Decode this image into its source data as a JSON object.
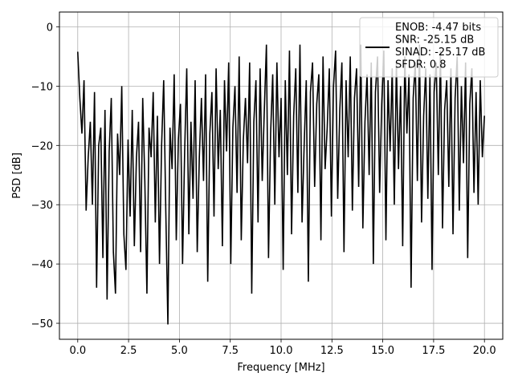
{
  "chart_data": {
    "type": "line",
    "title": "",
    "xlabel": "Frequency [MHz]",
    "ylabel": "PSD [dB]",
    "xlim": [
      -0.9,
      20.9
    ],
    "ylim": [
      -52.7,
      2.5
    ],
    "xticks": [
      0.0,
      2.5,
      5.0,
      7.5,
      10.0,
      12.5,
      15.0,
      17.5,
      20.0
    ],
    "xtick_labels": [
      "0.0",
      "2.5",
      "5.0",
      "7.5",
      "10.0",
      "12.5",
      "15.0",
      "17.5",
      "20.0"
    ],
    "yticks": [
      0,
      -10,
      -20,
      -30,
      -40,
      -50
    ],
    "ytick_labels": [
      "0",
      "−10",
      "−20",
      "−30",
      "−40",
      "−50"
    ],
    "grid": true,
    "legend_position": "top-right",
    "series": [
      {
        "name": "ENOB: -4.47 bits\nSNR: -25.15 dB\nSINAD: -25.17 dB\nSFDR: 0.8",
        "color": "#000000",
        "x_start": 0.0,
        "x_end": 20.0,
        "values": [
          -4.2,
          -12,
          -18,
          -9,
          -31,
          -22,
          -16,
          -30,
          -11,
          -44,
          -20,
          -17,
          -39,
          -14,
          -46,
          -21,
          -12,
          -38,
          -45,
          -18,
          -25,
          -10,
          -35,
          -41,
          -19,
          -32,
          -14,
          -37,
          -22,
          -16,
          -38,
          -12,
          -26,
          -45,
          -17,
          -22,
          -11,
          -33,
          -15,
          -40,
          -20,
          -9,
          -31,
          -50.2,
          -17,
          -24,
          -8,
          -36,
          -19,
          -13,
          -40,
          -21,
          -7,
          -35,
          -16,
          -29,
          -9,
          -38,
          -22,
          -12,
          -26,
          -8,
          -43,
          -18,
          -11,
          -32,
          -7,
          -24,
          -14,
          -37,
          -9,
          -21,
          -6,
          -40,
          -17,
          -10,
          -28,
          -5,
          -36,
          -19,
          -12,
          -23,
          -6,
          -45,
          -16,
          -9,
          -33,
          -7,
          -26,
          -14,
          -3,
          -39,
          -18,
          -8,
          -30,
          -6,
          -22,
          -12,
          -41,
          -9,
          -25,
          -4,
          -35,
          -15,
          -7,
          -28,
          -3,
          -33,
          -20,
          -9,
          -43,
          -11,
          -6,
          -27,
          -13,
          -8,
          -36,
          -5,
          -24,
          -17,
          -7,
          -32,
          -10,
          -4,
          -29,
          -14,
          -6,
          -38,
          -9,
          -22,
          -5,
          -31,
          -12,
          -7,
          -27,
          -3,
          -34,
          -16,
          -8,
          -25,
          -6,
          -40,
          -11,
          -5,
          -28,
          -13,
          -4,
          -36,
          -9,
          -21,
          -7,
          -30,
          -6,
          -24,
          -10,
          -37,
          -5,
          -18,
          -8,
          -44,
          -12,
          -6,
          -26,
          -3,
          -33,
          -15,
          -7,
          -29,
          -8,
          -41,
          -11,
          -6,
          -25,
          -4,
          -34,
          -14,
          -9,
          -27,
          -7,
          -35,
          -12,
          -5,
          -31,
          -10,
          -23,
          -6,
          -39,
          -13,
          -7,
          -28,
          -11,
          -30,
          -9,
          -22,
          -15
        ]
      }
    ]
  }
}
